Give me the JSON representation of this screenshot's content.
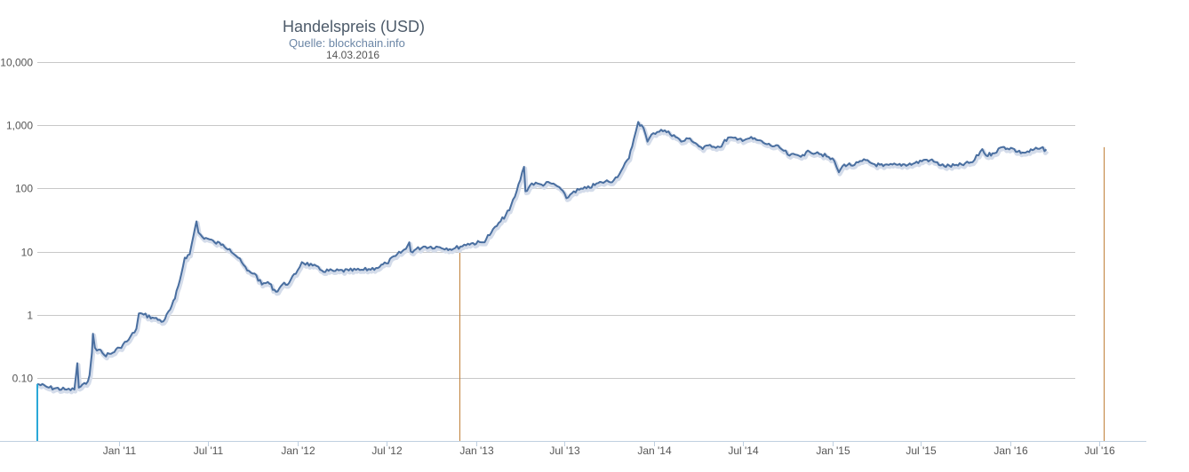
{
  "chart_data": {
    "type": "line",
    "title": "Handelspreis (USD)",
    "subtitle": "Quelle: blockchain.info",
    "date_label": "14.03.2016",
    "y_scale": "log",
    "ylim": [
      0.01,
      10000
    ],
    "y_ticks": [
      {
        "value": 10000,
        "label": "10,000"
      },
      {
        "value": 1000,
        "label": "1,000"
      },
      {
        "value": 100,
        "label": "100"
      },
      {
        "value": 10,
        "label": "10"
      },
      {
        "value": 1,
        "label": "1"
      },
      {
        "value": 0.1,
        "label": "0.10"
      }
    ],
    "xlim": [
      "2010-07-17",
      "2016-08-15"
    ],
    "x_ticks": [
      {
        "date": "2011-01-01",
        "label": "Jan '11"
      },
      {
        "date": "2011-07-01",
        "label": "Jul '11"
      },
      {
        "date": "2012-01-01",
        "label": "Jan '12"
      },
      {
        "date": "2012-07-01",
        "label": "Jul '12"
      },
      {
        "date": "2013-01-01",
        "label": "Jan '13"
      },
      {
        "date": "2013-07-01",
        "label": "Jul '13"
      },
      {
        "date": "2014-01-01",
        "label": "Jan '14"
      },
      {
        "date": "2014-07-01",
        "label": "Jul '14"
      },
      {
        "date": "2015-01-01",
        "label": "Jan '15"
      },
      {
        "date": "2015-07-01",
        "label": "Jul '15"
      },
      {
        "date": "2016-01-01",
        "label": "Jan '16"
      },
      {
        "date": "2016-07-01",
        "label": "Jul '16"
      }
    ],
    "grid": true,
    "legend": "none",
    "line_color": "#4a6fa0",
    "marker_color": "#c0803a",
    "start_marker_color": "#2aa8d8",
    "markers": [
      {
        "date": "2012-11-28",
        "value": 12
      },
      {
        "date": "2016-07-09",
        "value": 450
      }
    ],
    "series": [
      {
        "points": [
          [
            "2010-07-17",
            0.08
          ],
          [
            "2010-08-10",
            0.07
          ],
          [
            "2010-09-15",
            0.065
          ],
          [
            "2010-10-01",
            0.065
          ],
          [
            "2010-10-07",
            0.17
          ],
          [
            "2010-10-10",
            0.07
          ],
          [
            "2010-10-25",
            0.08
          ],
          [
            "2010-11-01",
            0.11
          ],
          [
            "2010-11-06",
            0.25
          ],
          [
            "2010-11-08",
            0.5
          ],
          [
            "2010-11-12",
            0.3
          ],
          [
            "2010-11-20",
            0.28
          ],
          [
            "2010-12-01",
            0.23
          ],
          [
            "2010-12-15",
            0.24
          ],
          [
            "2011-01-01",
            0.3
          ],
          [
            "2011-01-20",
            0.4
          ],
          [
            "2011-02-05",
            0.6
          ],
          [
            "2011-02-10",
            1.05
          ],
          [
            "2011-02-20",
            1.0
          ],
          [
            "2011-03-10",
            0.9
          ],
          [
            "2011-04-01",
            0.78
          ],
          [
            "2011-04-15",
            1.2
          ],
          [
            "2011-04-25",
            1.8
          ],
          [
            "2011-05-05",
            3.5
          ],
          [
            "2011-05-15",
            8.0
          ],
          [
            "2011-05-25",
            9.0
          ],
          [
            "2011-06-02",
            18.0
          ],
          [
            "2011-06-08",
            30.0
          ],
          [
            "2011-06-12",
            20.0
          ],
          [
            "2011-06-20",
            17.0
          ],
          [
            "2011-07-01",
            16.0
          ],
          [
            "2011-07-15",
            14.0
          ],
          [
            "2011-08-01",
            13.0
          ],
          [
            "2011-08-15",
            11.0
          ],
          [
            "2011-09-01",
            8.0
          ],
          [
            "2011-09-20",
            5.0
          ],
          [
            "2011-10-05",
            4.5
          ],
          [
            "2011-10-20",
            3.0
          ],
          [
            "2011-11-01",
            3.3
          ],
          [
            "2011-11-18",
            2.3
          ],
          [
            "2011-12-01",
            3.0
          ],
          [
            "2011-12-15",
            3.2
          ],
          [
            "2012-01-01",
            5.0
          ],
          [
            "2012-01-10",
            6.8
          ],
          [
            "2012-02-01",
            6.0
          ],
          [
            "2012-02-20",
            5.0
          ],
          [
            "2012-03-15",
            4.9
          ],
          [
            "2012-04-15",
            5.0
          ],
          [
            "2012-05-15",
            5.1
          ],
          [
            "2012-06-10",
            5.5
          ],
          [
            "2012-07-01",
            6.5
          ],
          [
            "2012-07-20",
            8.5
          ],
          [
            "2012-08-10",
            11.0
          ],
          [
            "2012-08-17",
            14.0
          ],
          [
            "2012-08-20",
            10.0
          ],
          [
            "2012-09-15",
            12.0
          ],
          [
            "2012-10-15",
            11.8
          ],
          [
            "2012-11-15",
            11.0
          ],
          [
            "2012-12-15",
            13.3
          ],
          [
            "2013-01-15",
            14.0
          ],
          [
            "2013-02-01",
            20.0
          ],
          [
            "2013-02-20",
            30.0
          ],
          [
            "2013-03-10",
            45.0
          ],
          [
            "2013-03-25",
            90.0
          ],
          [
            "2013-04-09",
            220.0
          ],
          [
            "2013-04-12",
            90.0
          ],
          [
            "2013-04-25",
            120.0
          ],
          [
            "2013-05-15",
            115.0
          ],
          [
            "2013-06-01",
            122.0
          ],
          [
            "2013-06-20",
            105.0
          ],
          [
            "2013-07-05",
            70.0
          ],
          [
            "2013-07-20",
            90.0
          ],
          [
            "2013-08-15",
            100.0
          ],
          [
            "2013-09-15",
            125.0
          ],
          [
            "2013-10-10",
            135.0
          ],
          [
            "2013-10-25",
            190.0
          ],
          [
            "2013-11-10",
            300.0
          ],
          [
            "2013-11-20",
            600.0
          ],
          [
            "2013-11-29",
            1130.0
          ],
          [
            "2013-12-10",
            900.0
          ],
          [
            "2013-12-18",
            550.0
          ],
          [
            "2013-12-30",
            750.0
          ],
          [
            "2014-01-15",
            850.0
          ],
          [
            "2014-02-10",
            700.0
          ],
          [
            "2014-02-25",
            550.0
          ],
          [
            "2014-03-15",
            620.0
          ],
          [
            "2014-04-10",
            420.0
          ],
          [
            "2014-04-25",
            490.0
          ],
          [
            "2014-05-15",
            450.0
          ],
          [
            "2014-06-01",
            640.0
          ],
          [
            "2014-06-20",
            590.0
          ],
          [
            "2014-07-15",
            620.0
          ],
          [
            "2014-08-01",
            580.0
          ],
          [
            "2014-08-20",
            500.0
          ],
          [
            "2014-09-15",
            440.0
          ],
          [
            "2014-10-05",
            330.0
          ],
          [
            "2014-11-01",
            340.0
          ],
          [
            "2014-11-15",
            380.0
          ],
          [
            "2014-12-01",
            375.0
          ],
          [
            "2014-12-20",
            320.0
          ],
          [
            "2015-01-05",
            270.0
          ],
          [
            "2015-01-14",
            180.0
          ],
          [
            "2015-01-25",
            240.0
          ],
          [
            "2015-02-15",
            235.0
          ],
          [
            "2015-03-10",
            280.0
          ],
          [
            "2015-03-25",
            245.0
          ],
          [
            "2015-04-15",
            225.0
          ],
          [
            "2015-05-15",
            237.0
          ],
          [
            "2015-06-15",
            245.0
          ],
          [
            "2015-07-10",
            285.0
          ],
          [
            "2015-07-20",
            280.0
          ],
          [
            "2015-08-18",
            225.0
          ],
          [
            "2015-09-15",
            230.0
          ],
          [
            "2015-10-15",
            260.0
          ],
          [
            "2015-11-04",
            420.0
          ],
          [
            "2015-11-12",
            330.0
          ],
          [
            "2015-11-25",
            360.0
          ],
          [
            "2015-12-15",
            450.0
          ],
          [
            "2016-01-05",
            430.0
          ],
          [
            "2016-01-15",
            380.0
          ],
          [
            "2016-02-01",
            370.0
          ],
          [
            "2016-02-25",
            425.0
          ],
          [
            "2016-03-14",
            415.0
          ]
        ]
      }
    ]
  }
}
